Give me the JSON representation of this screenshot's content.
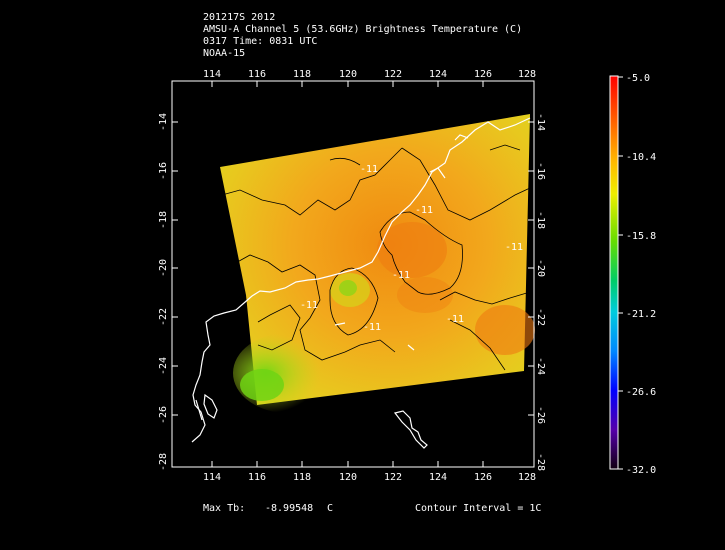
{
  "header": {
    "line1": "201217S 2012",
    "line2": "AMSU-A Channel 5 (53.6GHz) Brightness Temperature (C)",
    "line3": "0317 Time: 0831 UTC",
    "line4": "NOAA-15"
  },
  "map": {
    "lon_ticks": [
      "114",
      "116",
      "118",
      "120",
      "122",
      "124",
      "126",
      "128"
    ],
    "lat_ticks": [
      "-14",
      "-16",
      "-18",
      "-20",
      "-22",
      "-24",
      "-26",
      "-28"
    ],
    "contour_labels": [
      "-11",
      "-11",
      "-11",
      "-11",
      "-11",
      "-11",
      "-11"
    ],
    "lon_range": [
      112,
      128
    ],
    "lat_range": [
      -28,
      -12.5
    ]
  },
  "colorbar": {
    "labels": [
      "-5.0",
      "-10.4",
      "-15.8",
      "-21.2",
      "-26.6",
      "-32.0"
    ],
    "range": [
      -32.0,
      -5.0
    ]
  },
  "footer": {
    "max_label": "Max Tb:",
    "max_value": "-8.99548",
    "max_unit": "C",
    "contour": "Contour Interval = 1C"
  },
  "colors": {
    "background": "#000000",
    "frame": "#ffffff",
    "coast": "#ffffff",
    "contour": "#000000"
  }
}
